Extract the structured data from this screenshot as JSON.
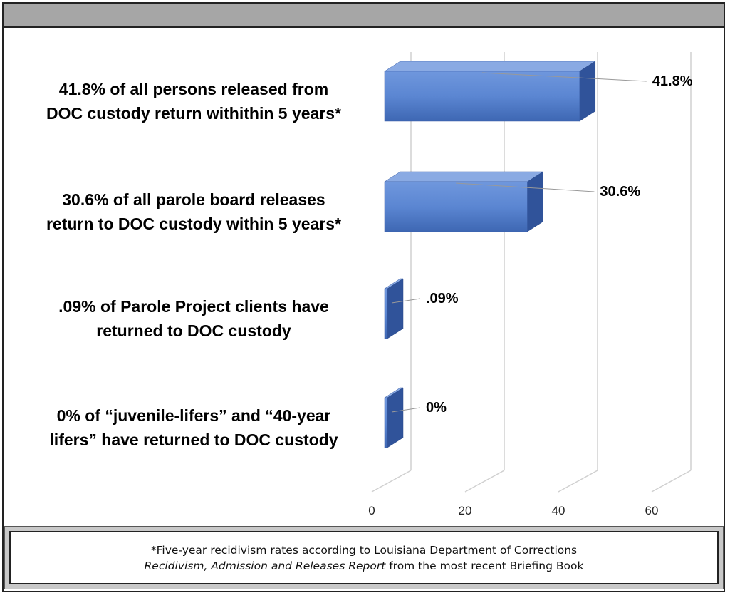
{
  "chart_data": {
    "type": "bar",
    "orientation": "horizontal",
    "style": "3d",
    "categories": [
      [
        "41.8% of all persons released from",
        "DOC custody return withithin 5 years*"
      ],
      [
        "30.6% of all parole board releases",
        "return to DOC custody within 5 years*"
      ],
      [
        ".09% of Parole Project clients have",
        "returned to DOC custody"
      ],
      [
        "0% of “juvenile-lifers” and “40-year",
        "lifers” have returned to DOC custody"
      ]
    ],
    "values": [
      41.8,
      30.6,
      0.09,
      0
    ],
    "data_labels": [
      "41.8%",
      "30.6%",
      ".09%",
      "0%"
    ],
    "xlim": [
      0,
      60
    ],
    "xticks": [
      0,
      20,
      40,
      60
    ],
    "grid": true,
    "bar_color": "#4472c4"
  },
  "footnote": {
    "line1": "*Five-year recidivism rates according to Louisiana Department of Corrections",
    "line2_italic": "Recidivism, Admission and Releases Report",
    "line2_rest": " from the most recent Briefing Book"
  }
}
